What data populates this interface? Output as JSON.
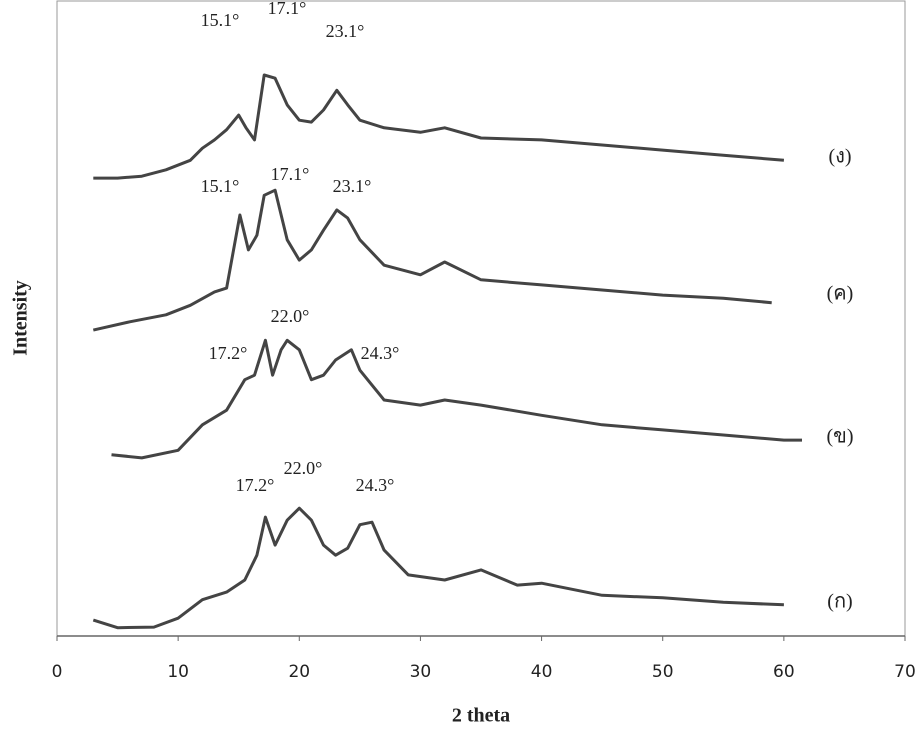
{
  "chart_data": {
    "type": "line",
    "x_label": "2 theta",
    "y_label": "Intensity",
    "xlim": [
      0,
      70
    ],
    "xticks": [
      0,
      10,
      20,
      30,
      40,
      50,
      60,
      70
    ],
    "ylim": [
      0,
      100
    ],
    "series": [
      {
        "name": "(ง)",
        "color": "#444444",
        "peak_labels": [
          "15.1°",
          "17.1°",
          "23.1°"
        ],
        "x": [
          3,
          5,
          7,
          9,
          11,
          12,
          13,
          14,
          15,
          15.6,
          16.3,
          17.1,
          18,
          19,
          20,
          21,
          22,
          23.1,
          24,
          25,
          27,
          30,
          32,
          35,
          40,
          45,
          50,
          55,
          60
        ],
        "values": [
          72,
          72,
          72.3,
          73.3,
          74.8,
          76.7,
          78,
          79.6,
          81.9,
          79.9,
          78,
          88.2,
          87.7,
          83.5,
          81.1,
          80.8,
          82.7,
          85.8,
          83.5,
          81.1,
          79.9,
          79.2,
          79.9,
          78.3,
          78,
          77.2,
          76.4,
          75.6,
          74.8
        ]
      },
      {
        "name": "(ค)",
        "color": "#444444",
        "peak_labels": [
          "15.1°",
          "17.1°",
          "23.1°"
        ],
        "x": [
          3,
          6,
          9,
          11,
          13,
          14,
          15.1,
          15.8,
          16.5,
          17.1,
          18,
          19,
          20,
          21,
          22,
          23.1,
          24,
          25,
          27,
          30,
          32,
          35,
          40,
          45,
          50,
          55,
          59
        ],
        "values": [
          48.1,
          49.4,
          50.5,
          52,
          54.1,
          54.7,
          66.2,
          60.7,
          63,
          69.3,
          70.1,
          62.3,
          59.1,
          60.7,
          63.8,
          67,
          65.7,
          62.3,
          58.3,
          56.8,
          58.8,
          56,
          55.2,
          54.4,
          53.6,
          53.1,
          52.4
        ]
      },
      {
        "name": "(ข)",
        "color": "#444444",
        "peak_labels": [
          "22.0°",
          "17.2°",
          "24.3°"
        ],
        "x": [
          4.5,
          7,
          10,
          12,
          14,
          15.5,
          16.3,
          17.2,
          17.8,
          18.5,
          19,
          20,
          21,
          22,
          23,
          24.3,
          25,
          27,
          30,
          32,
          35,
          40,
          45,
          50,
          55,
          60,
          61.5
        ],
        "values": [
          28.5,
          28,
          29.2,
          33.2,
          35.5,
          40.3,
          41,
          46.5,
          41,
          45,
          46.5,
          45,
          40.3,
          41,
          43.4,
          45,
          41.8,
          37.1,
          36.3,
          37.1,
          36.3,
          34.7,
          33.2,
          32.4,
          31.6,
          30.8,
          30.8
        ]
      },
      {
        "name": "(ก)",
        "color": "#444444",
        "peak_labels": [
          "22.0°",
          "17.2°",
          "24.3°"
        ],
        "x": [
          3,
          5,
          8,
          10,
          12,
          14,
          15.5,
          16.5,
          17.2,
          18,
          19,
          20,
          21,
          22,
          23,
          24,
          25,
          26,
          27,
          29,
          32,
          35,
          38,
          40,
          45,
          50,
          55,
          60
        ],
        "values": [
          2.5,
          1.3,
          1.4,
          2.8,
          5.7,
          6.9,
          8.8,
          12.7,
          18.7,
          14.3,
          18.2,
          20.1,
          18.2,
          14.3,
          12.7,
          13.8,
          17.5,
          17.9,
          13.5,
          9.6,
          8.8,
          10.4,
          8,
          8.3,
          6.4,
          6,
          5.3,
          4.9
        ]
      }
    ]
  }
}
